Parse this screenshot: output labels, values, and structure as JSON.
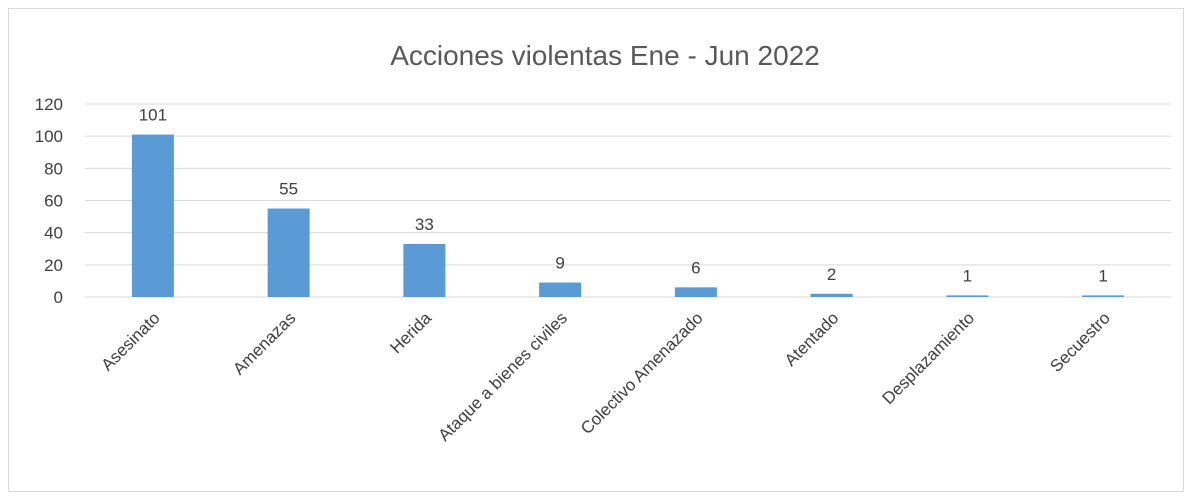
{
  "chart_data": {
    "type": "bar",
    "title": "Acciones violentas Ene - Jun 2022",
    "categories": [
      "Asesinato",
      "Amenazas",
      "Herida",
      "Ataque a bienes civiles",
      "Colectivo Amenazado",
      "Atentado",
      "Desplazamiento",
      "Secuestro"
    ],
    "values": [
      101,
      55,
      33,
      9,
      6,
      2,
      1,
      1
    ],
    "data_labels": [
      "101",
      "55",
      "33",
      "9",
      "6",
      "2",
      "1",
      "1"
    ],
    "xlabel": "",
    "ylabel": "",
    "ylim": [
      0,
      120
    ],
    "yticks": [
      0,
      20,
      40,
      60,
      80,
      100,
      120
    ],
    "grid": true,
    "legend": "none",
    "bar_color": "#5b9bd5"
  }
}
